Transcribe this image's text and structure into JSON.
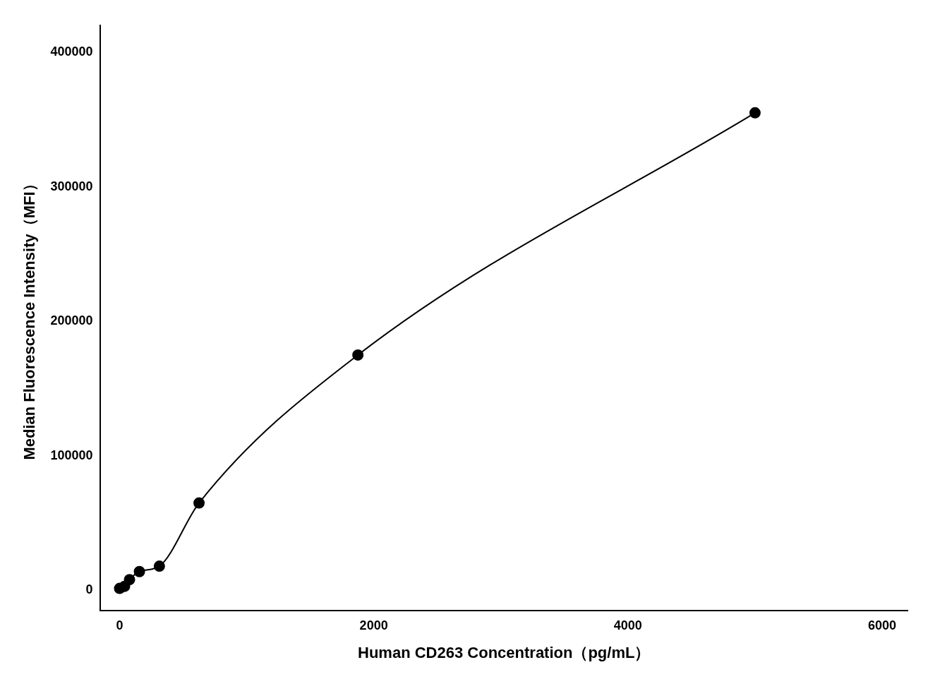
{
  "chart_data": {
    "type": "scatter",
    "x_label": "Human CD263 Concentration（pg/mL）",
    "y_label": "Median Fluorescence Intensity（MFI）",
    "x": [
      0,
      39,
      78,
      156,
      313,
      625,
      1875,
      5000
    ],
    "values": [
      1500,
      3000,
      8000,
      14000,
      18000,
      65000,
      175000,
      355000
    ],
    "color": "#000000",
    "marker": "circle",
    "line_style": "solid",
    "xlim": [
      -150,
      6200
    ],
    "ylim": [
      -15000,
      420000
    ],
    "xticks": [
      0,
      2000,
      4000,
      6000
    ],
    "yticks": [
      0,
      100000,
      200000,
      300000,
      400000
    ],
    "grid": false
  }
}
